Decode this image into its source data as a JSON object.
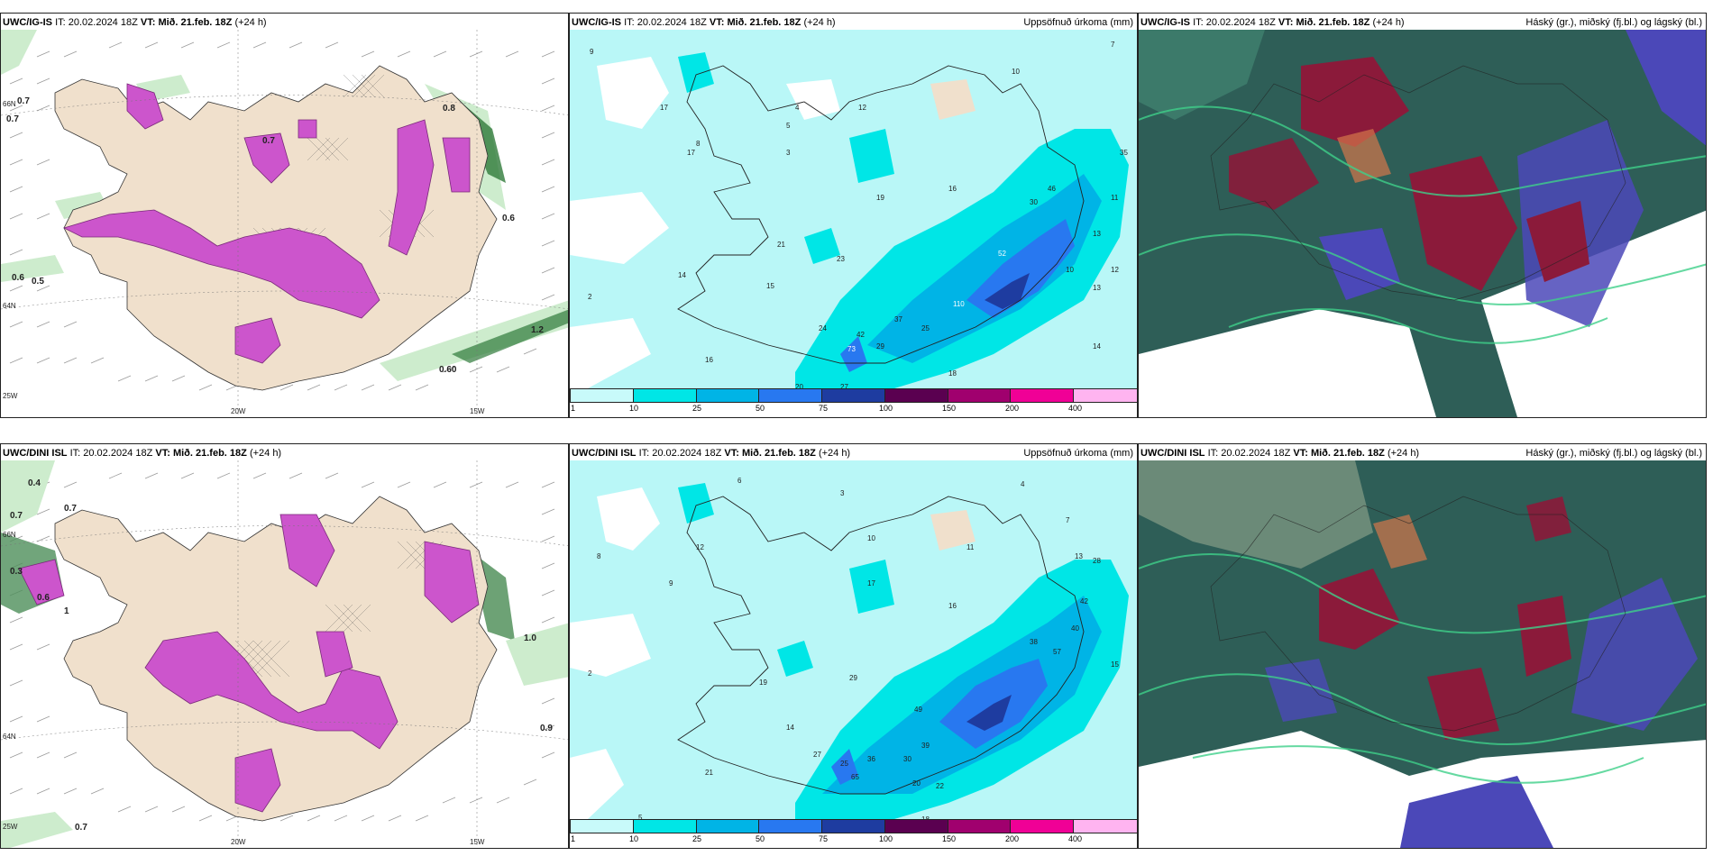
{
  "rows": [
    {
      "model": "UWC/IG-IS",
      "it_label": "IT:",
      "it_value": "20.02.2024 18Z",
      "vt_label": "VT:",
      "vt_value": "Mið. 21.feb. 18Z",
      "lead": "(+24 h)"
    },
    {
      "model": "UWC/DINI ISL",
      "it_label": "IT:",
      "it_value": "20.02.2024 18Z",
      "vt_label": "VT:",
      "vt_value": "Mið. 21.feb. 18Z",
      "lead": "(+24 h)"
    }
  ],
  "precip_title": "Uppsöfnuð úrkoma (mm)",
  "cloud_title": "Háský (gr.), miðský (fj.bl.) og lágský (bl.)",
  "legend": {
    "ticks": [
      "1",
      "10",
      "25",
      "50",
      "75",
      "100",
      "150",
      "200",
      "400"
    ],
    "colors": [
      "#c8fafa",
      "#00e6e6",
      "#00b4e6",
      "#2878f0",
      "#1e3ca0",
      "#5a0050",
      "#a0006e",
      "#f00096",
      "#ffb4f0"
    ]
  },
  "panel1": {
    "lon_labels": [
      "20W",
      "15W"
    ],
    "lat_labels": [
      "66N",
      "64N",
      "25W"
    ],
    "row1_values": [
      "0.7",
      "0.7",
      "0.6",
      "0.5",
      "0.7",
      "0.6",
      "0.8",
      "1.2",
      "0.60"
    ],
    "row2_values": [
      "0.4",
      "0.7",
      "0.3",
      "0.7",
      "0.6",
      "0.9",
      "0.7",
      "1.0",
      "1"
    ]
  },
  "precip_row1_numbers": [
    "9",
    "7",
    "10",
    "12",
    "17",
    "16",
    "14",
    "11",
    "13",
    "8",
    "2",
    "3",
    "16",
    "21",
    "23",
    "15",
    "19",
    "42",
    "27",
    "24",
    "35",
    "37",
    "25",
    "29",
    "73",
    "20",
    "18",
    "17",
    "110",
    "52",
    "30",
    "46",
    "10",
    "12",
    "13",
    "14",
    "4",
    "5",
    "6"
  ],
  "precip_row2_numbers": [
    "6",
    "3",
    "4",
    "7",
    "10",
    "8",
    "11",
    "12",
    "13",
    "17",
    "14",
    "19",
    "16",
    "21",
    "29",
    "25",
    "27",
    "36",
    "30",
    "65",
    "39",
    "20",
    "22",
    "28",
    "38",
    "57",
    "40",
    "42",
    "49",
    "18",
    "15",
    "9",
    "5",
    "2"
  ],
  "colors": {
    "sea": "#ffffff",
    "land": "#f0e0cc",
    "precip_bg": "#b9f7f7",
    "magenta": "#cc55cc",
    "green_light": "#cdeccd",
    "green_dark": "#2f7a3a",
    "cloud_dark": "#2e5e57",
    "cloud_red": "#8b1a3a",
    "cloud_blue": "#4b48b8"
  }
}
